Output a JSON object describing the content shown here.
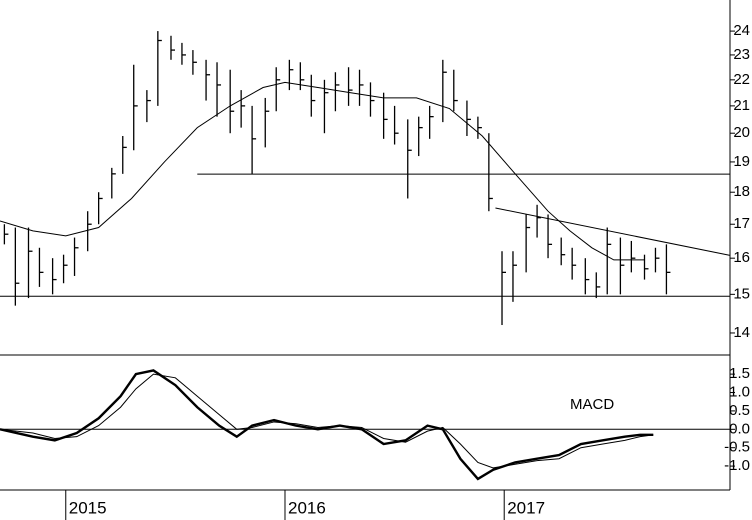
{
  "chart_data": [
    {
      "type": "ohlc",
      "xlim": [
        2014.7,
        2018.03
      ],
      "xticks": [
        2015,
        2016,
        2017
      ],
      "ylim": [
        13.46,
        25.37
      ],
      "yticks": [
        14,
        15,
        16,
        17,
        18,
        19,
        20,
        21,
        22,
        23,
        24
      ],
      "log_scale": true,
      "color": "#000000",
      "x": [
        2014.72,
        2014.77,
        2014.83,
        2014.88,
        2014.94,
        2014.99,
        2015.04,
        2015.1,
        2015.15,
        2015.21,
        2015.26,
        2015.31,
        2015.37,
        2015.42,
        2015.48,
        2015.53,
        2015.58,
        2015.64,
        2015.69,
        2015.75,
        2015.8,
        2015.85,
        2015.91,
        2015.96,
        2016.02,
        2016.07,
        2016.12,
        2016.18,
        2016.23,
        2016.29,
        2016.34,
        2016.39,
        2016.45,
        2016.5,
        2016.56,
        2016.61,
        2016.66,
        2016.72,
        2016.77,
        2016.83,
        2016.88,
        2016.93,
        2016.99,
        2017.04,
        2017.1,
        2017.15,
        2017.2,
        2017.26,
        2017.31,
        2017.37,
        2017.42,
        2017.47,
        2017.53,
        2017.58,
        2017.64,
        2017.69,
        2017.74
      ],
      "high": [
        17.0,
        16.9,
        16.9,
        16.3,
        16.0,
        16.1,
        16.6,
        17.4,
        18.0,
        18.8,
        19.9,
        22.6,
        21.6,
        24.0,
        23.8,
        23.5,
        23.2,
        22.8,
        22.7,
        22.4,
        21.6,
        21.0,
        21.3,
        22.5,
        22.8,
        22.7,
        22.2,
        22.0,
        22.3,
        22.5,
        22.4,
        21.9,
        21.5,
        21.0,
        20.5,
        20.6,
        21.0,
        22.8,
        22.4,
        21.2,
        20.6,
        20.0,
        16.2,
        16.2,
        17.3,
        17.6,
        17.3,
        16.6,
        16.3,
        16.0,
        15.6,
        16.9,
        16.6,
        16.5,
        16.1,
        16.3,
        16.4
      ],
      "low": [
        16.4,
        14.7,
        14.9,
        15.2,
        15.0,
        15.3,
        15.5,
        16.2,
        17.0,
        17.8,
        18.6,
        19.4,
        20.4,
        21.0,
        22.8,
        22.6,
        22.2,
        21.2,
        20.6,
        20.0,
        20.2,
        18.6,
        19.5,
        20.8,
        21.6,
        21.6,
        20.6,
        20.0,
        20.8,
        21.0,
        21.0,
        20.6,
        19.8,
        19.6,
        17.8,
        19.2,
        19.8,
        20.4,
        20.8,
        19.9,
        19.8,
        17.4,
        14.2,
        14.8,
        15.6,
        16.6,
        16.0,
        15.8,
        15.4,
        15.0,
        14.9,
        15.0,
        15.0,
        15.6,
        15.4,
        15.6,
        15.0
      ],
      "close": [
        16.7,
        15.3,
        16.2,
        15.6,
        15.4,
        15.8,
        16.3,
        17.0,
        17.8,
        18.6,
        19.5,
        21.0,
        21.2,
        23.6,
        23.2,
        23.0,
        22.7,
        22.2,
        21.8,
        20.8,
        21.0,
        19.8,
        20.8,
        22.0,
        22.4,
        22.0,
        21.2,
        21.5,
        21.8,
        21.6,
        21.8,
        21.2,
        20.5,
        20.0,
        19.4,
        20.2,
        20.6,
        22.3,
        21.2,
        20.5,
        20.2,
        17.8,
        15.6,
        15.8,
        16.9,
        17.2,
        16.4,
        16.1,
        15.8,
        15.4,
        15.2,
        16.4,
        15.8,
        16.0,
        15.7,
        16.0,
        15.6
      ],
      "moving_average": {
        "x": [
          2014.7,
          2014.85,
          2015.0,
          2015.15,
          2015.3,
          2015.45,
          2015.6,
          2015.75,
          2015.9,
          2016.0,
          2016.15,
          2016.3,
          2016.45,
          2016.6,
          2016.75,
          2016.9,
          2017.05,
          2017.2,
          2017.3,
          2017.4,
          2017.5,
          2017.64
        ],
        "values": [
          17.1,
          16.8,
          16.65,
          16.9,
          17.8,
          19.0,
          20.2,
          21.0,
          21.7,
          21.9,
          21.7,
          21.5,
          21.3,
          21.3,
          20.9,
          19.9,
          18.6,
          17.4,
          16.8,
          16.3,
          15.95,
          15.95
        ]
      },
      "lines": [
        {
          "x": [
            2014.7,
            2018.03
          ],
          "values": [
            14.95,
            14.95
          ]
        },
        {
          "x": [
            2015.6,
            2018.03
          ],
          "values": [
            18.59,
            18.59
          ]
        },
        {
          "x": [
            2016.96,
            2018.03
          ],
          "values": [
            17.5,
            16.08
          ]
        }
      ]
    },
    {
      "type": "line",
      "annotation": "MACD",
      "xlim": [
        2014.7,
        2018.03
      ],
      "xticks": [
        2015,
        2016,
        2017
      ],
      "ylim": [
        -1.65,
        2.02
      ],
      "yticks": [
        1.5,
        {
          "value": 1,
          "label": "1.0"
        },
        0.5,
        {
          "value": 0,
          "label": "0.0"
        },
        -0.5,
        {
          "value": -1,
          "label": "-1.0"
        }
      ],
      "zero_line": 0,
      "x": [
        2014.7,
        2014.85,
        2014.95,
        2015.05,
        2015.15,
        2015.25,
        2015.32,
        2015.4,
        2015.5,
        2015.6,
        2015.7,
        2015.78,
        2015.85,
        2015.95,
        2016.05,
        2016.15,
        2016.25,
        2016.35,
        2016.45,
        2016.55,
        2016.65,
        2016.72,
        2016.8,
        2016.88,
        2016.95,
        2017.05,
        2017.15,
        2017.25,
        2017.35,
        2017.45,
        2017.55,
        2017.62,
        2017.68
      ],
      "series": [
        {
          "color": "#000000",
          "values": [
            0.0,
            -0.2,
            -0.3,
            -0.1,
            0.3,
            0.9,
            1.5,
            1.6,
            1.2,
            0.6,
            0.1,
            -0.2,
            0.1,
            0.25,
            0.1,
            0.0,
            0.1,
            0.0,
            -0.4,
            -0.3,
            0.1,
            0.0,
            -0.8,
            -1.35,
            -1.1,
            -0.9,
            -0.8,
            -0.7,
            -0.4,
            -0.3,
            -0.2,
            -0.15,
            -0.15
          ]
        },
        {
          "color": "#000000",
          "values": [
            0.0,
            -0.1,
            -0.25,
            -0.2,
            0.1,
            0.6,
            1.1,
            1.5,
            1.4,
            0.9,
            0.4,
            0.0,
            0.05,
            0.2,
            0.15,
            0.05,
            0.1,
            0.05,
            -0.25,
            -0.35,
            -0.05,
            0.05,
            -0.4,
            -0.9,
            -1.05,
            -0.95,
            -0.85,
            -0.8,
            -0.5,
            -0.4,
            -0.3,
            -0.2,
            -0.15
          ]
        }
      ]
    }
  ]
}
